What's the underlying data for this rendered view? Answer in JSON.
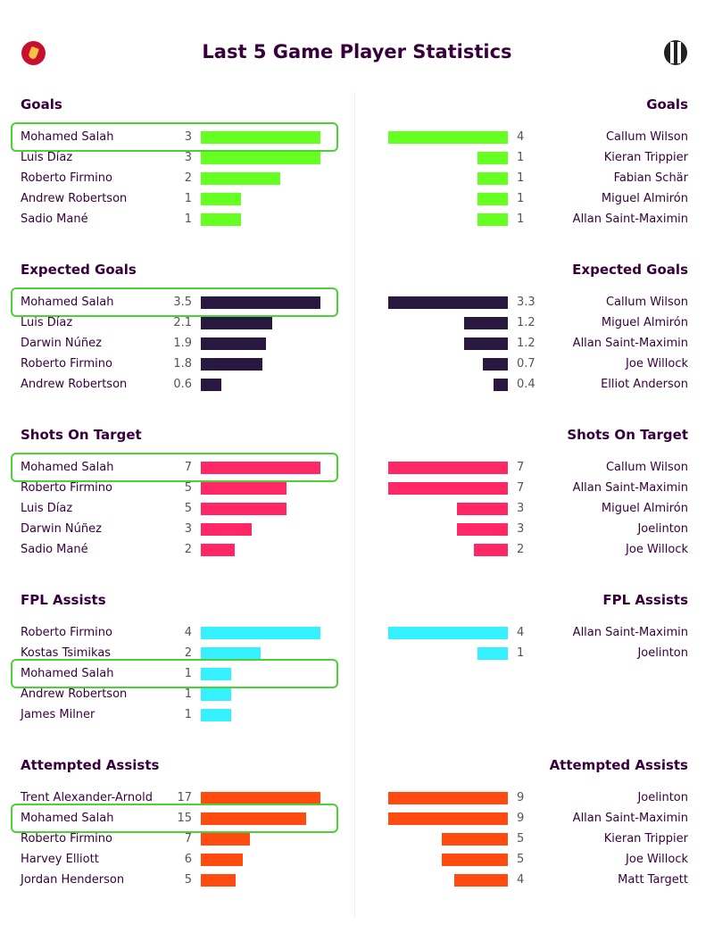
{
  "title": "Last 5 Game Player Statistics",
  "colors": {
    "highlight": "#4cd137",
    "goals": "#66ff22",
    "expected_goals": "#29183f",
    "shots_on_target": "#ff2766",
    "fpl_assists": "#35f0ff",
    "attempted_assists": "#ff4a10"
  },
  "chart_data": [
    {
      "type": "bar",
      "title": "Goals",
      "color": "goals",
      "left": [
        {
          "player": "Mohamed Salah",
          "value": 3,
          "label": "3",
          "highlight": true
        },
        {
          "player": "Luis Díaz",
          "value": 3,
          "label": "3"
        },
        {
          "player": "Roberto Firmino",
          "value": 2,
          "label": "2"
        },
        {
          "player": "Andrew Robertson",
          "value": 1,
          "label": "1"
        },
        {
          "player": "Sadio Mané",
          "value": 1,
          "label": "1"
        }
      ],
      "right": [
        {
          "player": "Callum Wilson",
          "value": 4,
          "label": "4"
        },
        {
          "player": "Kieran Trippier",
          "value": 1,
          "label": "1"
        },
        {
          "player": "Fabian Schär",
          "value": 1,
          "label": "1"
        },
        {
          "player": "Miguel Almirón",
          "value": 1,
          "label": "1"
        },
        {
          "player": "Allan Saint-Maximin",
          "value": 1,
          "label": "1"
        }
      ]
    },
    {
      "type": "bar",
      "title": "Expected Goals",
      "color": "expected_goals",
      "left": [
        {
          "player": "Mohamed Salah",
          "value": 3.5,
          "label": "3.5",
          "highlight": true
        },
        {
          "player": "Luis Díaz",
          "value": 2.1,
          "label": "2.1"
        },
        {
          "player": "Darwin Núñez",
          "value": 1.9,
          "label": "1.9"
        },
        {
          "player": "Roberto Firmino",
          "value": 1.8,
          "label": "1.8"
        },
        {
          "player": "Andrew Robertson",
          "value": 0.6,
          "label": "0.6"
        }
      ],
      "right": [
        {
          "player": "Callum Wilson",
          "value": 3.3,
          "label": "3.3"
        },
        {
          "player": "Miguel Almirón",
          "value": 1.2,
          "label": "1.2"
        },
        {
          "player": "Allan Saint-Maximin",
          "value": 1.2,
          "label": "1.2"
        },
        {
          "player": "Joe Willock",
          "value": 0.7,
          "label": "0.7"
        },
        {
          "player": "Elliot Anderson",
          "value": 0.4,
          "label": "0.4"
        }
      ]
    },
    {
      "type": "bar",
      "title": "Shots On Target",
      "color": "shots_on_target",
      "left": [
        {
          "player": "Mohamed Salah",
          "value": 7,
          "label": "7",
          "highlight": true
        },
        {
          "player": "Roberto Firmino",
          "value": 5,
          "label": "5"
        },
        {
          "player": "Luis Díaz",
          "value": 5,
          "label": "5"
        },
        {
          "player": "Darwin Núñez",
          "value": 3,
          "label": "3"
        },
        {
          "player": "Sadio Mané",
          "value": 2,
          "label": "2"
        }
      ],
      "right": [
        {
          "player": "Callum Wilson",
          "value": 7,
          "label": "7"
        },
        {
          "player": "Allan Saint-Maximin",
          "value": 7,
          "label": "7"
        },
        {
          "player": "Miguel Almirón",
          "value": 3,
          "label": "3"
        },
        {
          "player": "Joelinton",
          "value": 3,
          "label": "3"
        },
        {
          "player": "Joe Willock",
          "value": 2,
          "label": "2"
        }
      ]
    },
    {
      "type": "bar",
      "title": "FPL Assists",
      "color": "fpl_assists",
      "left": [
        {
          "player": "Roberto Firmino",
          "value": 4,
          "label": "4"
        },
        {
          "player": "Kostas Tsimikas",
          "value": 2,
          "label": "2"
        },
        {
          "player": "Mohamed Salah",
          "value": 1,
          "label": "1",
          "highlight": true
        },
        {
          "player": "Andrew Robertson",
          "value": 1,
          "label": "1"
        },
        {
          "player": "James Milner",
          "value": 1,
          "label": "1"
        }
      ],
      "right": [
        {
          "player": "Allan Saint-Maximin",
          "value": 4,
          "label": "4"
        },
        {
          "player": "Joelinton",
          "value": 1,
          "label": "1"
        }
      ]
    },
    {
      "type": "bar",
      "title": "Attempted Assists",
      "color": "attempted_assists",
      "left": [
        {
          "player": "Trent Alexander-Arnold",
          "value": 17,
          "label": "17"
        },
        {
          "player": "Mohamed Salah",
          "value": 15,
          "label": "15",
          "highlight": true
        },
        {
          "player": "Roberto Firmino",
          "value": 7,
          "label": "7"
        },
        {
          "player": "Harvey Elliott",
          "value": 6,
          "label": "6"
        },
        {
          "player": "Jordan Henderson",
          "value": 5,
          "label": "5"
        }
      ],
      "right": [
        {
          "player": "Joelinton",
          "value": 9,
          "label": "9"
        },
        {
          "player": "Allan Saint-Maximin",
          "value": 9,
          "label": "9"
        },
        {
          "player": "Kieran Trippier",
          "value": 5,
          "label": "5"
        },
        {
          "player": "Joe Willock",
          "value": 5,
          "label": "5"
        },
        {
          "player": "Matt Targett",
          "value": 4,
          "label": "4"
        }
      ]
    }
  ]
}
